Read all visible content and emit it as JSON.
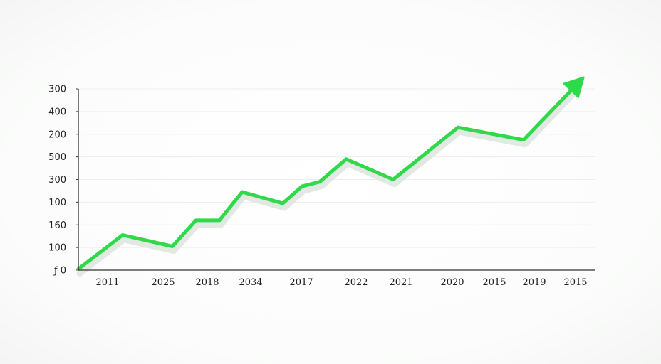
{
  "chart_data": {
    "type": "line",
    "title": "",
    "xlabel": "",
    "ylabel": "",
    "y_tick_labels": [
      "ƒ 0",
      "100",
      "160",
      "100",
      "300",
      "500",
      "200",
      "400",
      "300"
    ],
    "x_tick_labels": [
      "2011",
      "2025",
      "2018",
      "2034",
      "2017",
      "2022",
      "2021",
      "2020",
      "2015",
      "2019",
      "2015"
    ],
    "grid": true,
    "legend": "none",
    "line_color": "#2fd94a",
    "shadow_color": "#dfe6df",
    "axis_color": "#333333",
    "ends_with_arrow": true,
    "series": [
      {
        "values_in_tick_units": [
          0.05,
          1.55,
          1.05,
          2.2,
          2.2,
          3.45,
          2.95,
          3.7,
          3.9,
          4.9,
          4.0,
          6.3,
          5.75,
          8.2
        ]
      }
    ]
  }
}
